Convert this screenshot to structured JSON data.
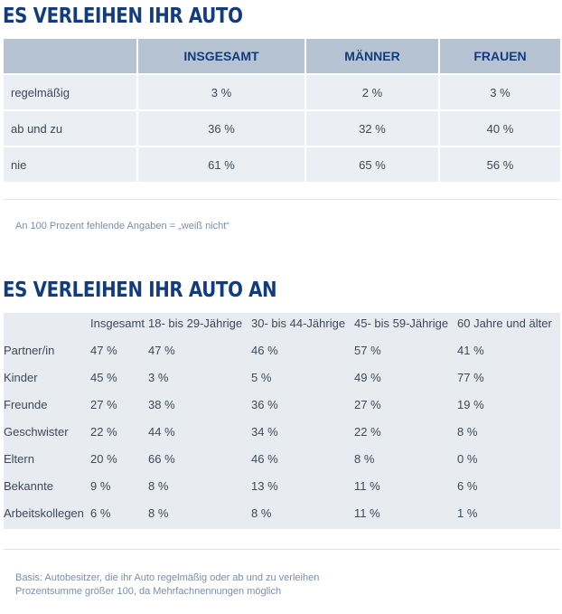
{
  "section1": {
    "title": "ES VERLEIHEN IHR AUTO",
    "columns": [
      "",
      "INSGESAMT",
      "MÄNNER",
      "FRAUEN"
    ],
    "rows": [
      {
        "label": "regelmäßig",
        "values": [
          "3 %",
          "2 %",
          "3 %"
        ]
      },
      {
        "label": "ab und zu",
        "values": [
          "36 %",
          "32 %",
          "40 %"
        ]
      },
      {
        "label": "nie",
        "values": [
          "61 %",
          "65 %",
          "56 %"
        ]
      }
    ],
    "note": "An 100 Prozent fehlende Angaben = „weiß nicht“"
  },
  "section2": {
    "title": "ES VERLEIHEN IHR AUTO AN",
    "columns": [
      "Insgesamt",
      "18- bis 29-Jährige",
      "30- bis 44-Jährige",
      "45- bis 59-Jährige",
      "60 Jahre und älter"
    ],
    "rows": [
      {
        "label": "Partner/in",
        "values": [
          "47 %",
          "47 %",
          "46 %",
          "57 %",
          "41 %"
        ]
      },
      {
        "label": "Kinder",
        "values": [
          "45 %",
          "3 %",
          "5 %",
          "49 %",
          "77 %"
        ]
      },
      {
        "label": "Freunde",
        "values": [
          "27 %",
          "38 %",
          "36 %",
          "27 %",
          "19 %"
        ]
      },
      {
        "label": "Geschwister",
        "values": [
          "22 %",
          "44 %",
          "34 %",
          "22 %",
          "8 %"
        ]
      },
      {
        "label": "Eltern",
        "values": [
          "20 %",
          "66 %",
          "46 %",
          "8 %",
          "0 %"
        ]
      },
      {
        "label": "Bekannte",
        "values": [
          "9 %",
          "8 %",
          "13 %",
          "11 %",
          "6 %"
        ]
      },
      {
        "label": "Arbeitskollegen",
        "values": [
          "6 %",
          "8 %",
          "8 %",
          "11 %",
          "1 %"
        ]
      }
    ],
    "note_line1": "Basis: Autobesitzer, die ihr Auto regelmäßig oder ab und zu verleihen",
    "note_line2": "Prozentsumme größer 100, da Mehrfachnennungen möglich"
  }
}
